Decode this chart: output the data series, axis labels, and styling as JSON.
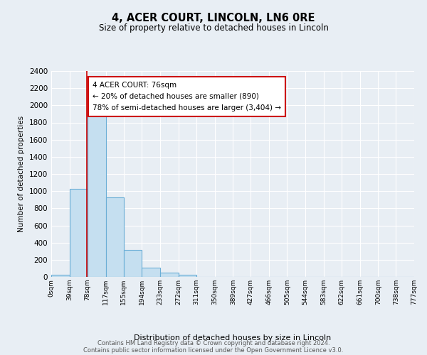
{
  "title": "4, ACER COURT, LINCOLN, LN6 0RE",
  "subtitle": "Size of property relative to detached houses in Lincoln",
  "xlabel": "Distribution of detached houses by size in Lincoln",
  "ylabel": "Number of detached properties",
  "bin_edges": [
    0,
    39,
    78,
    117,
    155,
    194,
    233,
    272,
    311,
    350,
    389,
    427,
    466,
    505,
    544,
    583,
    622,
    661,
    700,
    738,
    777
  ],
  "bin_labels": [
    "0sqm",
    "39sqm",
    "78sqm",
    "117sqm",
    "155sqm",
    "194sqm",
    "233sqm",
    "272sqm",
    "311sqm",
    "350sqm",
    "389sqm",
    "427sqm",
    "466sqm",
    "505sqm",
    "544sqm",
    "583sqm",
    "622sqm",
    "661sqm",
    "700sqm",
    "738sqm",
    "777sqm"
  ],
  "counts": [
    25,
    1025,
    1900,
    930,
    315,
    105,
    50,
    25,
    0,
    0,
    0,
    0,
    0,
    0,
    0,
    0,
    0,
    0,
    0,
    0
  ],
  "bar_color": "#c5dff0",
  "bar_edge_color": "#6aaed6",
  "property_line_x": 76,
  "property_line_color": "#cc0000",
  "annotation_line1": "4 ACER COURT: 76sqm",
  "annotation_line2": "← 20% of detached houses are smaller (890)",
  "annotation_line3": "78% of semi-detached houses are larger (3,404) →",
  "annotation_box_color": "#ffffff",
  "annotation_box_edge": "#cc0000",
  "ylim": [
    0,
    2400
  ],
  "yticks": [
    0,
    200,
    400,
    600,
    800,
    1000,
    1200,
    1400,
    1600,
    1800,
    2000,
    2200,
    2400
  ],
  "footer_line1": "Contains HM Land Registry data © Crown copyright and database right 2024.",
  "footer_line2": "Contains public sector information licensed under the Open Government Licence v3.0.",
  "bg_color": "#e8eef4",
  "grid_color": "#ffffff"
}
